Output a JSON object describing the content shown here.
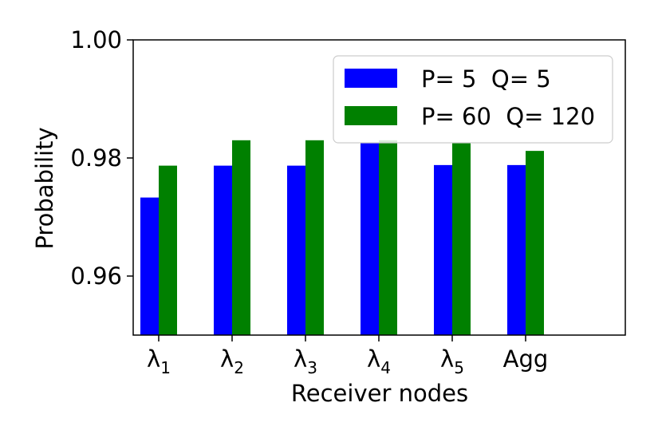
{
  "chart_data": {
    "type": "bar",
    "categories": [
      {
        "base": "λ",
        "sub": "1"
      },
      {
        "base": "λ",
        "sub": "2"
      },
      {
        "base": "λ",
        "sub": "3"
      },
      {
        "base": "λ",
        "sub": "4"
      },
      {
        "base": "λ",
        "sub": "5"
      },
      {
        "base": "Agg",
        "sub": ""
      }
    ],
    "series": [
      {
        "name": "P= 5  Q= 5",
        "color": "#0000ff",
        "values": [
          0.9733,
          0.9787,
          0.9787,
          0.9825,
          0.9788,
          0.9788
        ]
      },
      {
        "name": "P= 60  Q= 120",
        "color": "#008000",
        "values": [
          0.9787,
          0.983,
          0.983,
          0.983,
          0.9825,
          0.9812
        ]
      }
    ],
    "title": "",
    "xlabel": "Receiver nodes",
    "ylabel": "Probability",
    "ylim": [
      0.95,
      1.0
    ],
    "yticks": [
      {
        "value": 0.96,
        "label": "0.96"
      },
      {
        "value": 0.98,
        "label": "0.98"
      },
      {
        "value": 1.0,
        "label": "1.00"
      }
    ],
    "grid": false,
    "legend_position": "top-right"
  }
}
